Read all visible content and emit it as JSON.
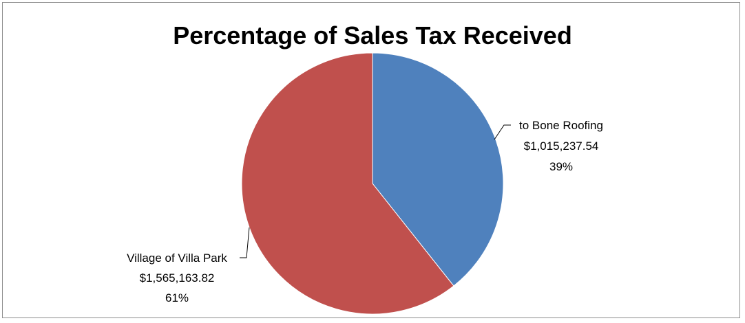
{
  "chart_data": {
    "type": "pie",
    "title": "Percentage of Sales Tax Received",
    "slices": [
      {
        "label": "to Bone Roofing",
        "value": 1015237.54,
        "value_text": "$1,015,237.54",
        "percent_text": "39%",
        "color": "#4f81bd"
      },
      {
        "label": "Village of Villa Park",
        "value": 1565163.82,
        "value_text": "$1,565,163.82",
        "percent_text": "61%",
        "color": "#c0504d"
      }
    ],
    "start_angle": "12 o'clock",
    "direction": "clockwise",
    "legend": "none",
    "data_labels": "outside-with-leader-lines"
  }
}
